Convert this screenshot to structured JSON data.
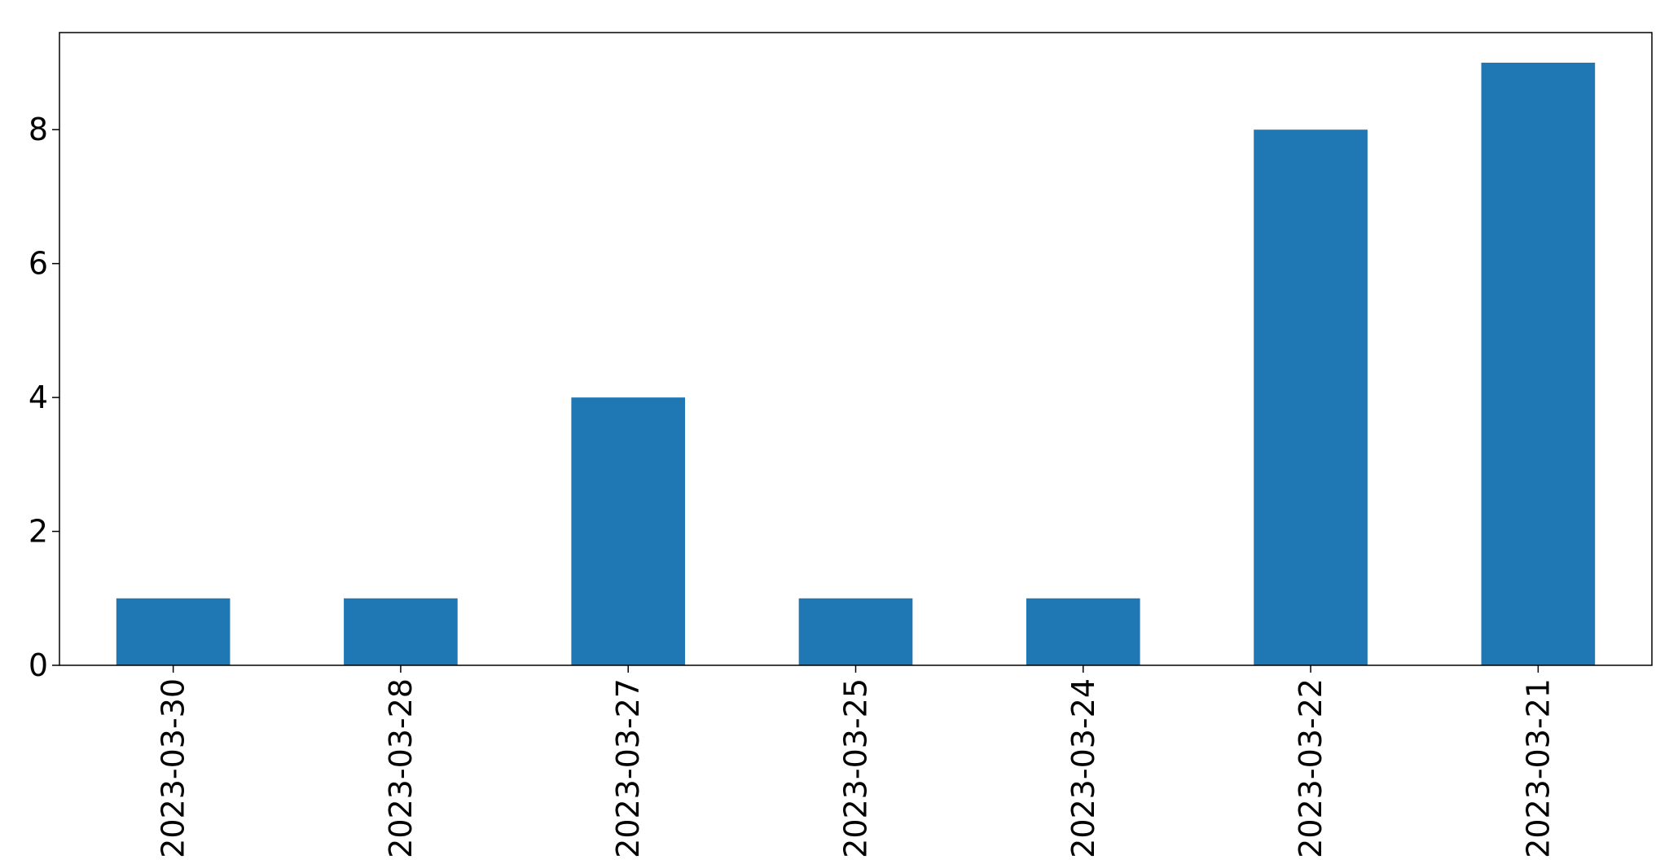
{
  "chart_data": {
    "type": "bar",
    "categories": [
      "2023-03-30",
      "2023-03-28",
      "2023-03-27",
      "2023-03-25",
      "2023-03-24",
      "2023-03-22",
      "2023-03-21"
    ],
    "values": [
      1,
      1,
      4,
      1,
      1,
      8,
      9
    ],
    "title": "",
    "xlabel": "",
    "ylabel": "",
    "ylim": [
      0,
      9.45
    ],
    "yticks": [
      0,
      2,
      4,
      6,
      8
    ],
    "grid": false,
    "legend": "none",
    "bar_color": "#1f77b4"
  }
}
